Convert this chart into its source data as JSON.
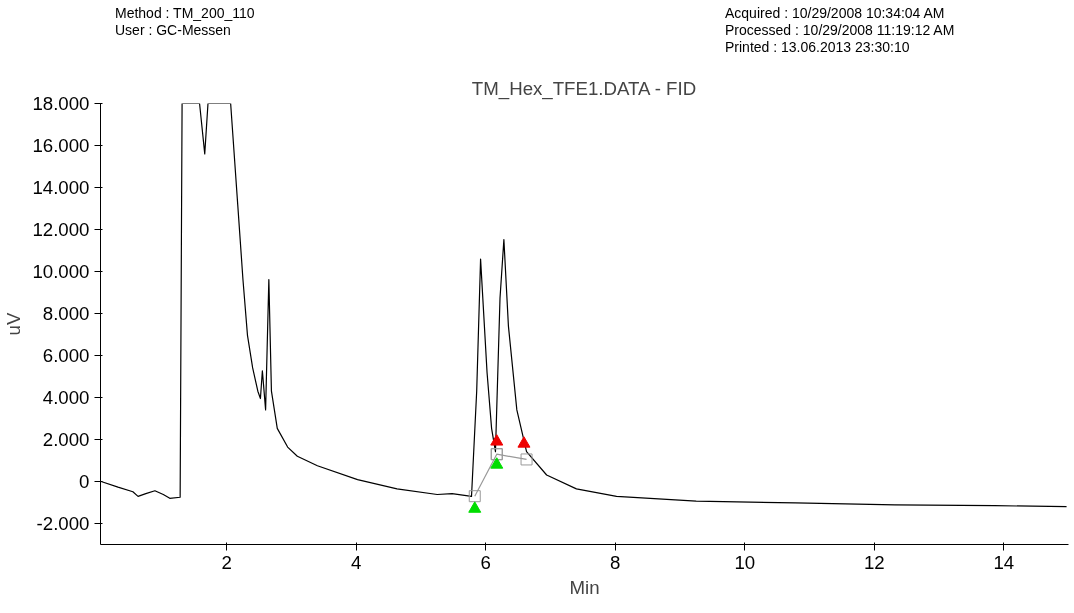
{
  "chart_data": {
    "type": "line",
    "title": "TM_Hex_TFE1.DATA - FID",
    "xlabel": "Min",
    "ylabel": "uV",
    "annotations": [
      "Method : TM_200_110",
      "User : GC-Messen",
      "Acquired : 10/29/2008 10:34:04 AM",
      "Processed  : 10/29/2008 11:19:12 AM",
      "Printed : 13.06.2013 23:30:10"
    ],
    "xlim": [
      0.05,
      15
    ],
    "ylim": [
      -3000,
      18000
    ],
    "xticks": [
      2,
      4,
      6,
      8,
      10,
      12,
      14
    ],
    "yticks": [
      {
        "value": -2000,
        "label": "-2.000"
      },
      0,
      {
        "value": 2000,
        "label": "2.000"
      },
      {
        "value": 4000,
        "label": "4.000"
      },
      {
        "value": 6000,
        "label": "6.000"
      },
      {
        "value": 8000,
        "label": "8.000"
      },
      {
        "value": 10000,
        "label": "10.000"
      },
      {
        "value": 12000,
        "label": "12.000"
      },
      {
        "value": 14000,
        "label": "14.000"
      },
      {
        "value": 16000,
        "label": "16.000"
      },
      {
        "value": 18000,
        "label": "18.000"
      }
    ],
    "grid": false,
    "series": [
      {
        "color": "#000000",
        "marker": "none",
        "line_style": "solid",
        "x": [
          0.06,
          0.32,
          0.55,
          0.63,
          0.75,
          0.89,
          1.02,
          1.12,
          1.28,
          1.31,
          1.32,
          1.58,
          1.66,
          1.71,
          2.06,
          2.17,
          2.25,
          2.32,
          2.4,
          2.48,
          2.52,
          2.55,
          2.6,
          2.65,
          2.69,
          2.78,
          2.94,
          3.09,
          3.4,
          4.02,
          4.63,
          5.25,
          5.48,
          5.78,
          5.86,
          5.92,
          6.02,
          6.09,
          6.15,
          6.22,
          6.28,
          6.35,
          6.48,
          6.63,
          6.94,
          7.4,
          8.02,
          9.25,
          10.78,
          12.32,
          13.86,
          14.97
        ],
        "values": [
          0,
          -270,
          -490,
          -710,
          -580,
          -440,
          -620,
          -800,
          -750,
          18000,
          18000,
          18000,
          15600,
          18000,
          18000,
          13160,
          9620,
          6960,
          5410,
          4300,
          3950,
          5270,
          3410,
          9620,
          4300,
          2530,
          1640,
          1200,
          750,
          90,
          -350,
          -620,
          -580,
          -710,
          4300,
          10590,
          5190,
          2530,
          1420,
          8730,
          11520,
          7400,
          3410,
          1420,
          310,
          -350,
          -710,
          -930,
          -1020,
          -1110,
          -1150,
          -1200
        ]
      },
      {
        "color": "#999999",
        "marker": "square",
        "line_style": "solid",
        "x": [
          5.83,
          6.17,
          6.17,
          6.63
        ],
        "values": [
          -700,
          1300,
          1300,
          1050
        ]
      },
      {
        "type": "scatter",
        "color": "#00dd00",
        "marker": "triangle",
        "x": [
          5.83,
          6.17
        ],
        "values": [
          -1300,
          800
        ]
      },
      {
        "type": "scatter",
        "color": "#ee0000",
        "marker": "triangle",
        "x": [
          6.17,
          6.59
        ],
        "values": [
          1900,
          1800
        ]
      }
    ]
  }
}
